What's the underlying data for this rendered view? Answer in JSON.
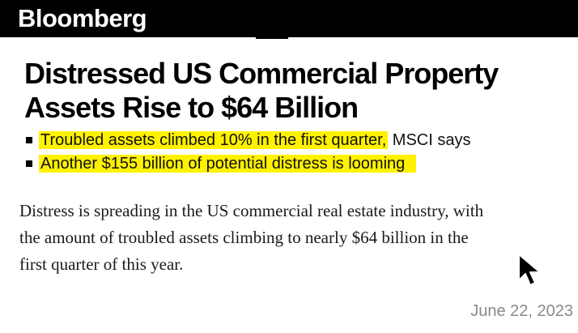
{
  "header": {
    "brand": "Bloomberg"
  },
  "article": {
    "headline_line1": "Distressed US Commercial Property",
    "headline_line2": "Assets Rise to $64 Billion",
    "bullets": [
      {
        "highlighted": "Troubled assets climbed 10% in the first quarter,",
        "rest": " MSCI says"
      },
      {
        "highlighted": "Another $155 billion of potential distress is looming",
        "rest": ""
      }
    ],
    "body_line1": "Distress is spreading in the US commercial real estate industry, with",
    "body_line2": "the amount of troubled assets climbing to nearly $64 billion in the",
    "body_line3": "first quarter of this year."
  },
  "date": "June 22, 2023",
  "colors": {
    "header_bg": "#000000",
    "highlight": "#fff200",
    "date_text": "#8a8a8a"
  },
  "icons": {
    "pointer": "mouse-pointer-icon"
  }
}
